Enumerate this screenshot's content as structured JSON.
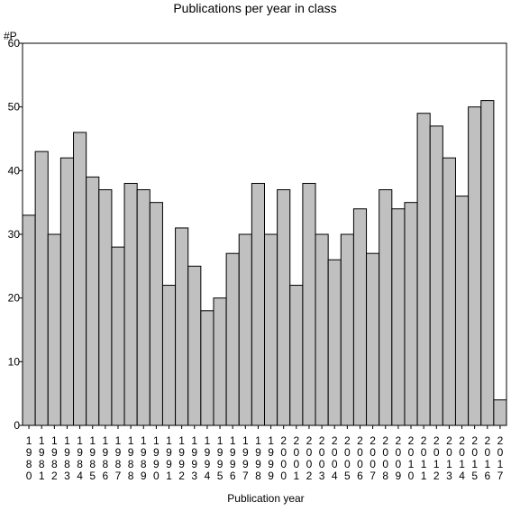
{
  "chart_data": {
    "type": "bar",
    "title": "Publications per year in class",
    "ylabel": "#P",
    "xlabel": "Publication year",
    "ylim": [
      0,
      60
    ],
    "yticks": [
      0,
      10,
      20,
      30,
      40,
      50,
      60
    ],
    "grid": false,
    "legend": "none",
    "bar_color": "#c0c0c0",
    "bar_edge_color": "#000000",
    "categories": [
      "1980",
      "1981",
      "1982",
      "1983",
      "1984",
      "1985",
      "1986",
      "1987",
      "1988",
      "1989",
      "1990",
      "1991",
      "1992",
      "1993",
      "1994",
      "1995",
      "1996",
      "1997",
      "1998",
      "1999",
      "2000",
      "2001",
      "2002",
      "2003",
      "2004",
      "2005",
      "2006",
      "2007",
      "2008",
      "2009",
      "2010",
      "2011",
      "2012",
      "2013",
      "2014",
      "2015",
      "2016",
      "2017"
    ],
    "values": [
      33,
      43,
      30,
      42,
      46,
      39,
      37,
      28,
      38,
      37,
      35,
      22,
      31,
      25,
      18,
      20,
      27,
      30,
      38,
      30,
      37,
      22,
      38,
      30,
      26,
      30,
      34,
      27,
      37,
      34,
      35,
      49,
      47,
      42,
      36,
      50,
      51,
      4
    ]
  }
}
